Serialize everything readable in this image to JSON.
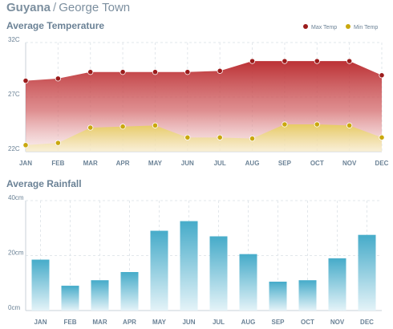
{
  "header": {
    "country": "Guyana",
    "separator": "/",
    "city": "George Town"
  },
  "chart_data": [
    {
      "type": "area",
      "title": "Average Temperature",
      "categories": [
        "JAN",
        "FEB",
        "MAR",
        "APR",
        "MAY",
        "JUN",
        "JUL",
        "AUG",
        "SEP",
        "OCT",
        "NOV",
        "DEC"
      ],
      "y_ticks": [
        "32C",
        "27C",
        "22C"
      ],
      "ylim": [
        22,
        32
      ],
      "grid": true,
      "legend_position": "top-right",
      "series": [
        {
          "name": "Max Temp",
          "color": "#9b1c1c",
          "values": [
            28.5,
            28.7,
            29.3,
            29.3,
            29.3,
            29.3,
            29.4,
            30.3,
            30.3,
            30.3,
            30.3,
            29.0
          ]
        },
        {
          "name": "Min Temp",
          "color": "#c9a80e",
          "values": [
            22.6,
            22.8,
            24.2,
            24.3,
            24.4,
            23.3,
            23.3,
            23.2,
            24.5,
            24.5,
            24.4,
            23.3
          ]
        }
      ]
    },
    {
      "type": "bar",
      "title": "Average Rainfall",
      "categories": [
        "JAN",
        "FEB",
        "MAR",
        "APR",
        "MAY",
        "JUN",
        "JUL",
        "AUG",
        "SEP",
        "OCT",
        "NOV",
        "DEC"
      ],
      "y_ticks": [
        "40cm",
        "20cm",
        "0cm"
      ],
      "ylim": [
        0,
        40
      ],
      "grid": true,
      "color": "#4aaecb",
      "values": [
        18.5,
        9,
        11,
        14,
        29,
        32.5,
        27,
        20.5,
        10.5,
        11,
        19,
        27.5
      ]
    }
  ]
}
